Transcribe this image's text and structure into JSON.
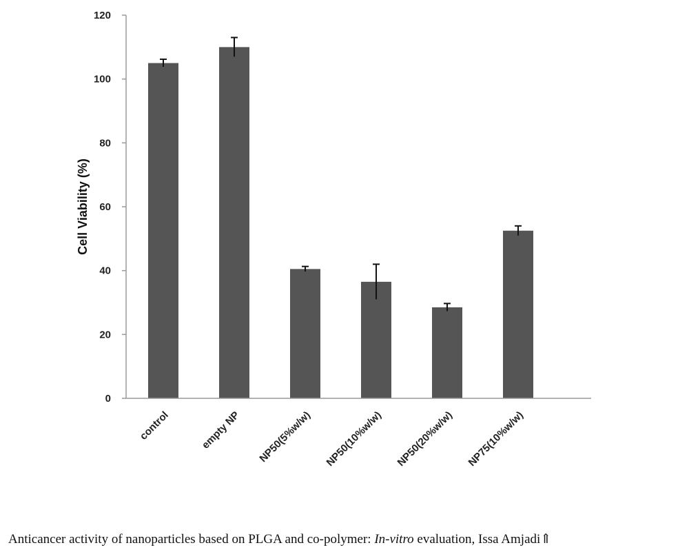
{
  "chart_data": {
    "type": "bar",
    "categories": [
      "control",
      "empty NP",
      "NP50(5%w/w)",
      "NP50(10%w/w)",
      "NP50(20%w/w)",
      "NP75(10%w/w)"
    ],
    "values": [
      105,
      110,
      40.5,
      36.5,
      28.5,
      52.5
    ],
    "errors": [
      1.2,
      3.0,
      0.8,
      5.5,
      1.2,
      1.5
    ],
    "xlabel": "",
    "ylabel": "Cell Viability (%)",
    "ylim": [
      0,
      120
    ],
    "yticks": [
      0,
      20,
      40,
      60,
      80,
      100,
      120
    ],
    "grid": false,
    "bar_color": "#555555"
  },
  "caption": {
    "before": "Anticancer activity of nanoparticles based on PLGA and co-polymer: ",
    "italic": "In-vitro",
    "after": " evaluation, Issa Amjadi⇑"
  }
}
